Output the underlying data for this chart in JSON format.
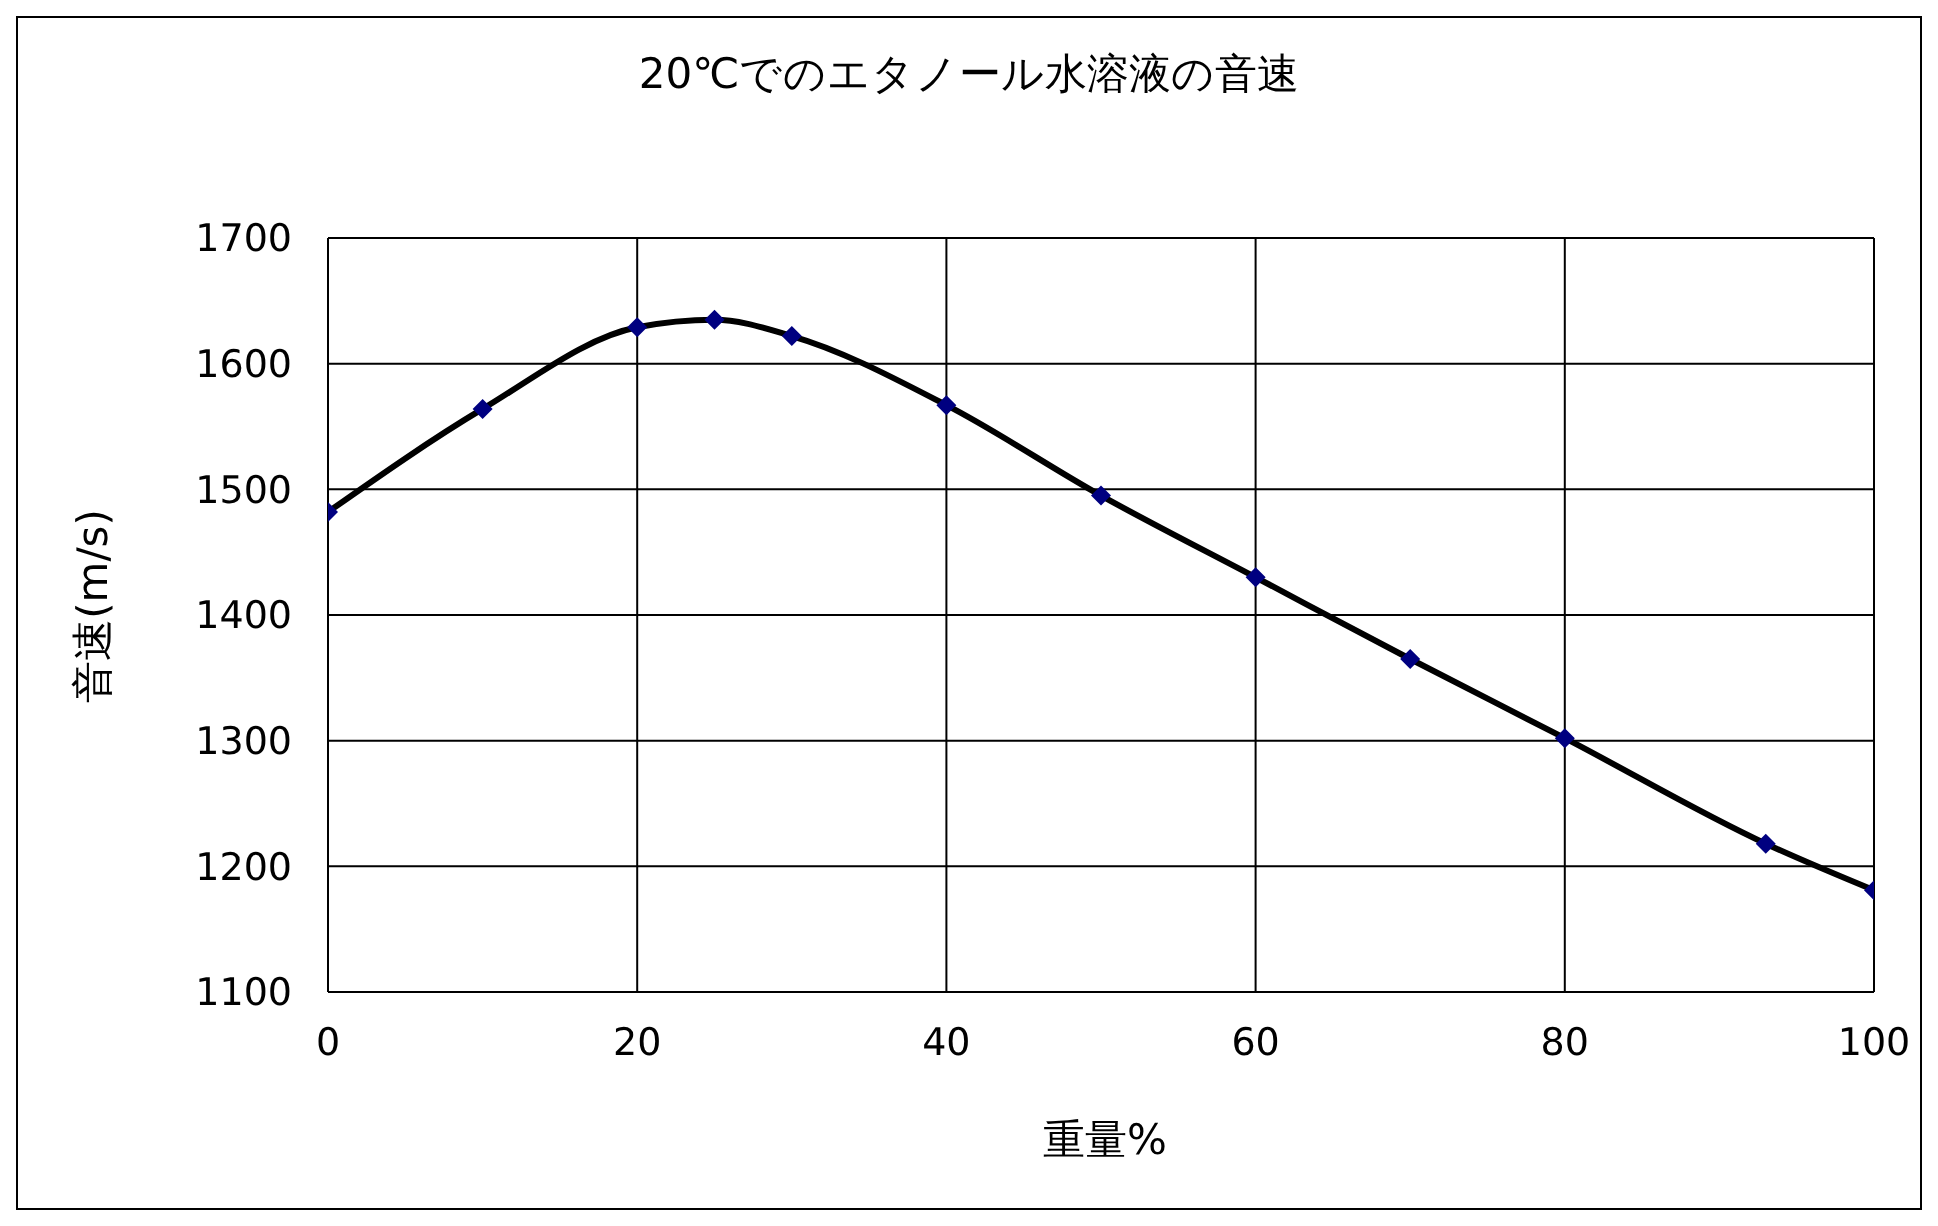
{
  "chart_data": {
    "type": "scatter",
    "title": "20℃でのエタノール水溶液の音速",
    "xlabel": "重量%",
    "ylabel": "音速(m/s)",
    "x": [
      0,
      10,
      20,
      25,
      30,
      40,
      50,
      60,
      70,
      80,
      93,
      100
    ],
    "series": [
      {
        "color": "#000080",
        "marker": "diamond",
        "values": [
          1482,
          1564,
          1629,
          1635,
          1622,
          1567,
          1495,
          1430,
          1365,
          1302,
          1218,
          1181
        ]
      },
      {
        "type": "line",
        "color": "#000000",
        "marker": "none",
        "line_style": "solid",
        "values": [
          1482,
          1564,
          1629,
          1635,
          1622,
          1567,
          1495,
          1430,
          1365,
          1302,
          1218,
          1181
        ]
      }
    ],
    "xlim": [
      0,
      100
    ],
    "xticks": [
      0,
      20,
      40,
      60,
      80,
      100
    ],
    "ylim": [
      1100,
      1700
    ],
    "yticks": [
      1100,
      1200,
      1300,
      1400,
      1500,
      1600,
      1700
    ],
    "grid": true
  }
}
